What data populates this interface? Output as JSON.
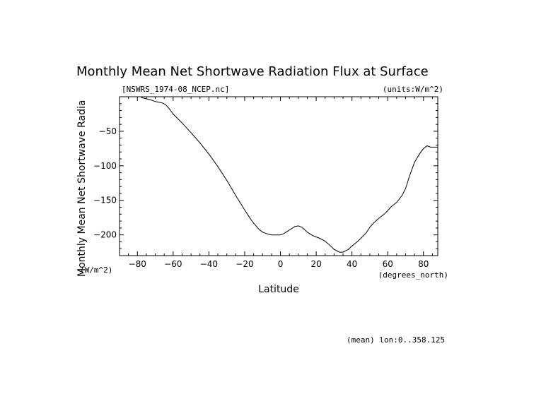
{
  "chart_data": {
    "type": "line",
    "title": "Monthly Mean Net Shortwave Radiation Flux at Surface",
    "file_label": "[NSWRS_1974-08_NCEP.nc]",
    "units_label": "(units:W/m^2)",
    "xlabel": "Latitude",
    "x_units": "(degrees_north)",
    "ylabel": "Monthly Mean Net Shortwave Radia",
    "y_units": "(W/m^2)",
    "footer": "(mean) lon:0..358.125",
    "xlim": [
      -90,
      88
    ],
    "ylim": [
      -230,
      0
    ],
    "x_ticks": [
      -80,
      -60,
      -40,
      -20,
      0,
      20,
      40,
      60,
      80
    ],
    "x_tick_labels": [
      "−80",
      "−60",
      "−40",
      "−20",
      "0",
      "20",
      "40",
      "60",
      "80"
    ],
    "y_ticks": [
      -50,
      -100,
      -150,
      -200
    ],
    "y_tick_labels": [
      "−50",
      "−100",
      "−150",
      "−200"
    ],
    "grid": false,
    "series": [
      {
        "x": [
          -78,
          -75,
          -72,
          -70,
          -68,
          -66,
          -64,
          -62,
          -60,
          -55,
          -50,
          -45,
          -40,
          -35,
          -30,
          -25,
          -20,
          -17,
          -15,
          -12,
          -10,
          -8,
          -5,
          -3,
          0,
          2,
          5,
          8,
          10,
          12,
          15,
          18,
          20,
          22,
          25,
          28,
          30,
          33,
          35,
          38,
          40,
          43,
          45,
          48,
          50,
          52,
          55,
          58,
          60,
          62,
          65,
          68,
          70,
          72,
          75,
          78,
          80,
          82,
          84,
          86,
          88
        ],
        "y": [
          -1,
          -3,
          -5,
          -7,
          -8,
          -9,
          -12,
          -18,
          -25,
          -38,
          -52,
          -67,
          -83,
          -101,
          -121,
          -143,
          -164,
          -176,
          -183,
          -192,
          -196,
          -198,
          -200,
          -200,
          -200,
          -198,
          -193,
          -188,
          -187,
          -189,
          -196,
          -201,
          -203,
          -205,
          -209,
          -216,
          -221,
          -225,
          -225,
          -221,
          -216,
          -210,
          -205,
          -197,
          -189,
          -183,
          -176,
          -170,
          -165,
          -159,
          -153,
          -143,
          -133,
          -116,
          -95,
          -82,
          -75,
          -71,
          -73,
          -73,
          -73
        ]
      }
    ]
  }
}
